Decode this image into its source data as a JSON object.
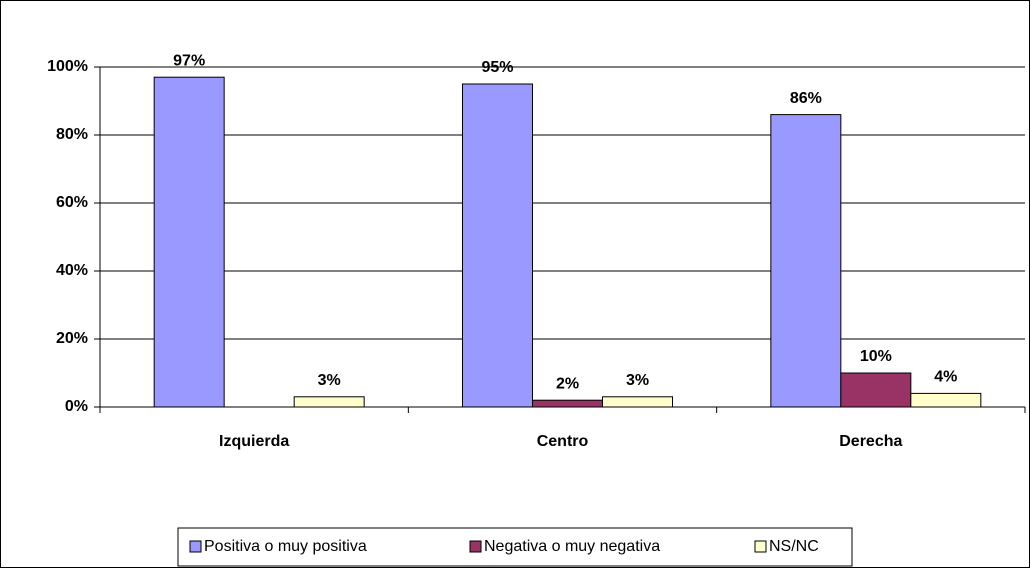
{
  "chart_data": {
    "type": "bar",
    "categories": [
      "Izquierda",
      "Centro",
      "Derecha"
    ],
    "series": [
      {
        "name": "Positiva o muy positiva",
        "color": "#9999ff",
        "values": [
          97,
          95,
          86
        ],
        "value_labels": [
          "97%",
          "95%",
          "86%"
        ]
      },
      {
        "name": "Negativa o muy negativa",
        "color": "#993366",
        "values": [
          null,
          2,
          10
        ],
        "value_labels": [
          null,
          "2%",
          "10%"
        ]
      },
      {
        "name": "NS/NC",
        "color": "#ffffcc",
        "values": [
          3,
          3,
          4
        ],
        "value_labels": [
          "3%",
          "3%",
          "4%"
        ]
      }
    ],
    "ylim": [
      0,
      100
    ],
    "yticks": [
      {
        "value": 0,
        "label": "0%"
      },
      {
        "value": 20,
        "label": "20%"
      },
      {
        "value": 40,
        "label": "40%"
      },
      {
        "value": 60,
        "label": "60%"
      },
      {
        "value": 80,
        "label": "80%"
      },
      {
        "value": 100,
        "label": "100%"
      }
    ],
    "grid": true,
    "legend": "bottom"
  }
}
